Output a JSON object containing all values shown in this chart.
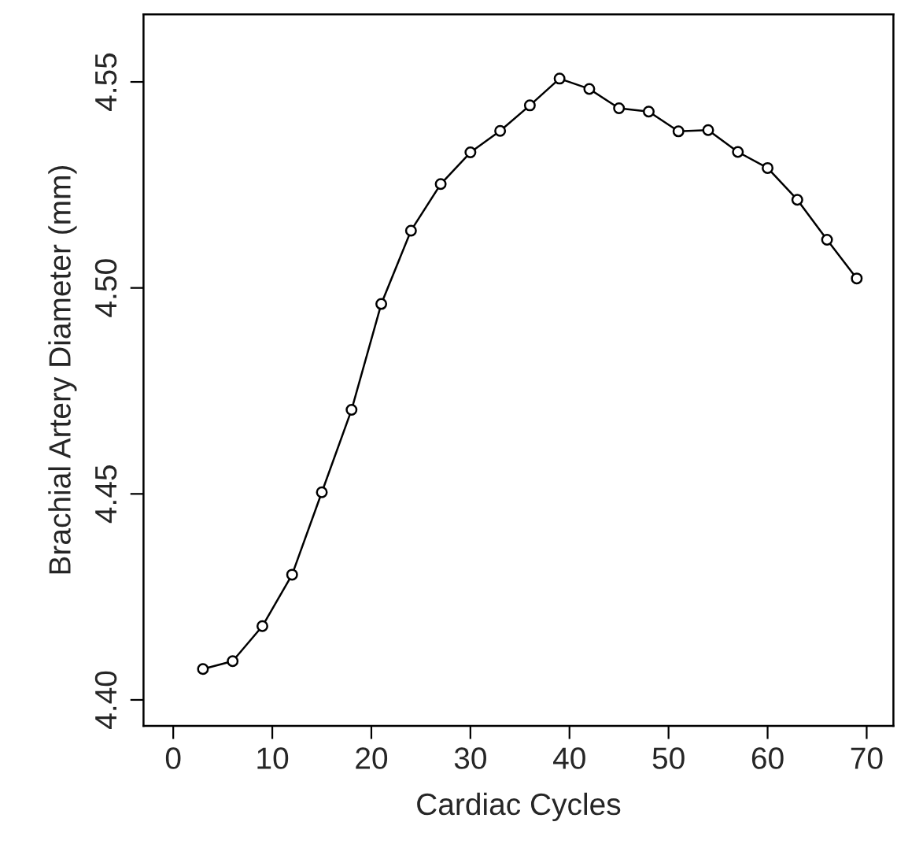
{
  "chart_data": {
    "type": "line",
    "xlabel": "Cardiac Cycles",
    "ylabel": "Brachial Artery Diameter (mm)",
    "x": [
      3,
      6,
      9,
      12,
      15,
      18,
      21,
      24,
      27,
      30,
      33,
      36,
      39,
      42,
      45,
      48,
      51,
      54,
      57,
      60,
      63,
      66,
      69
    ],
    "series": [
      {
        "color": "#000000",
        "values": [
          4.4075,
          4.4094,
          4.4179,
          4.4304,
          4.4504,
          4.4704,
          4.4961,
          4.5139,
          4.5252,
          4.5329,
          4.5381,
          4.5443,
          4.5508,
          4.5483,
          4.5436,
          4.5428,
          4.538,
          4.5383,
          4.533,
          4.5291,
          4.5214,
          4.5117,
          4.5023
        ]
      }
    ],
    "xlim": [
      -3,
      72.7
    ],
    "ylim": [
      4.3937,
      4.5664
    ],
    "xticks": [
      0,
      10,
      20,
      30,
      40,
      50,
      60,
      70
    ],
    "yticks": [
      {
        "value": 4.4,
        "label": "4.40"
      },
      {
        "value": 4.45,
        "label": "4.45"
      },
      {
        "value": 4.5,
        "label": "4.50"
      },
      {
        "value": 4.55,
        "label": "4.55"
      }
    ],
    "marker": "circle",
    "line_style": "solid",
    "grid": false,
    "legend": false
  }
}
